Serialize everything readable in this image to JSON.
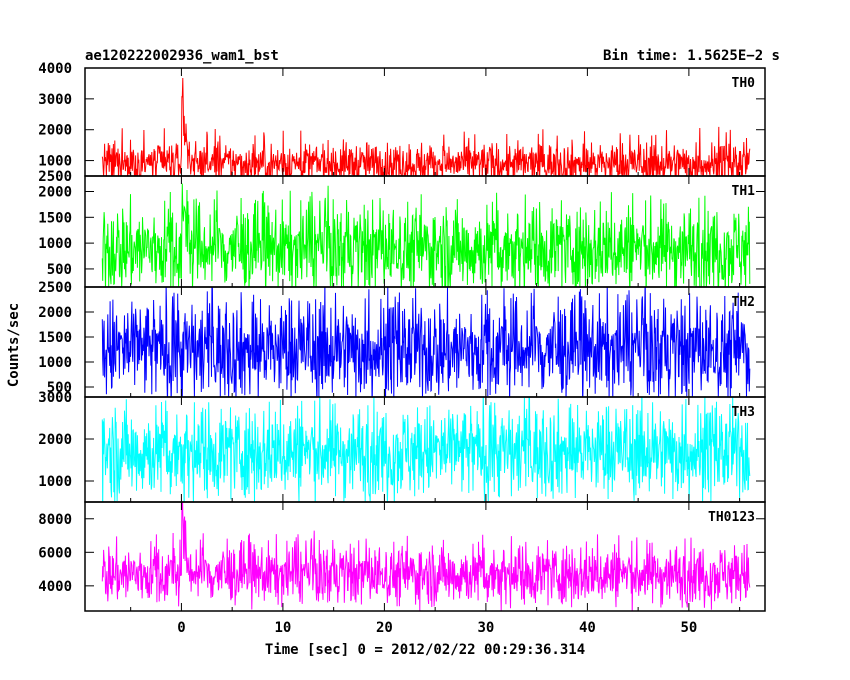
{
  "header": {
    "title": "ae120222002936_wam1_bst",
    "bin_time": "Bin time: 1.5625E−2 s"
  },
  "chart_data": {
    "type": "line",
    "ylabel": "Counts/sec",
    "xlabel": "Time [sec] 0 = 2012/02/22 00:29:36.314",
    "x_range": [
      -7.8,
      56.0
    ],
    "xlim": [
      -9.5,
      57.5
    ],
    "x_ticks": [
      "0",
      "10",
      "20",
      "30",
      "40",
      "50"
    ],
    "grid": false,
    "panels": [
      {
        "name": "TH0",
        "color": "#ff0000",
        "ylim": [
          500,
          4000
        ],
        "y_ticks": [
          "1000",
          "2000",
          "3000",
          "4000"
        ],
        "bottom_label": "2500",
        "baseline": 900,
        "noise": 340,
        "spike_max": 4000,
        "peak_max": 2100,
        "burst": {
          "t0": 0.0,
          "amp": 2800,
          "decay": 0.35
        }
      },
      {
        "name": "TH1",
        "color": "#00ff00",
        "ylim": [
          150,
          2300
        ],
        "y_ticks": [
          "500",
          "1000",
          "1500",
          "2000"
        ],
        "bottom_label": "2500",
        "baseline": 900,
        "noise": 420,
        "spike_max": 2300,
        "peak_max": 2050,
        "burst": {
          "t0": 0.0,
          "amp": 900,
          "decay": 0.4
        }
      },
      {
        "name": "TH2",
        "color": "#0000ff",
        "ylim": [
          300,
          2500
        ],
        "y_ticks": [
          "500",
          "1000",
          "1500",
          "2000"
        ],
        "baseline": 1250,
        "noise": 500,
        "spike_max": 2500,
        "peak_max": 2500,
        "burst": {
          "t0": 0.0,
          "amp": 0,
          "decay": 0.4
        }
      },
      {
        "name": "TH3",
        "color": "#00ffff",
        "ylim": [
          500,
          3000
        ],
        "y_ticks": [
          "1000",
          "2000",
          "3000"
        ],
        "baseline": 1700,
        "noise": 550,
        "spike_max": 3000,
        "peak_max": 3000,
        "burst": {
          "t0": 0.0,
          "amp": 0,
          "decay": 0.4
        }
      },
      {
        "name": "TH0123",
        "color": "#ff00ff",
        "ylim": [
          2500,
          9000
        ],
        "y_ticks": [
          "4000",
          "6000",
          "8000"
        ],
        "baseline": 4700,
        "noise": 900,
        "spike_max": 9000,
        "peak_max": 7200,
        "burst": {
          "t0": 0.0,
          "amp": 4200,
          "decay": 0.35
        }
      }
    ]
  }
}
